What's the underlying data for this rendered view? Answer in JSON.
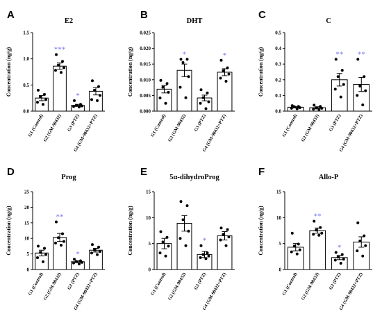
{
  "chart_data": [
    {
      "type": "bar",
      "letter": "A",
      "title": "E2",
      "ylabel": "Concentration (ng/g)",
      "ylim": [
        0,
        1.5
      ],
      "yticks": [
        "0.0",
        "0.5",
        "1.0",
        "1.5"
      ],
      "categories": [
        "G1 (Control)",
        "G2 (GM-90432)",
        "G3 (PTZ)",
        "G4 (GM-90432+PTZ)"
      ],
      "values": [
        0.25,
        0.86,
        0.11,
        0.38
      ],
      "errors": [
        0.05,
        0.06,
        0.02,
        0.07
      ],
      "points": [
        [
          0.4,
          0.32,
          0.27,
          0.22,
          0.17,
          0.13
        ],
        [
          1.08,
          0.95,
          0.88,
          0.83,
          0.78,
          0.74
        ],
        [
          0.2,
          0.13,
          0.11,
          0.1,
          0.09,
          0.08
        ],
        [
          0.58,
          0.47,
          0.4,
          0.3,
          0.22,
          0.2
        ]
      ],
      "significance": [
        "",
        "***",
        "*",
        ""
      ],
      "sig_color": "#6f6fef"
    },
    {
      "type": "bar",
      "letter": "B",
      "title": "DHT",
      "ylabel": "Concentration (ng/g)",
      "ylim": [
        0,
        0.025
      ],
      "yticks": [
        "0.000",
        "0.005",
        "0.010",
        "0.015",
        "0.020",
        "0.025"
      ],
      "categories": [
        "G1 (Control)",
        "G2 (GM-90432)",
        "G3 (PTZ)",
        "G4 (GM-90432+PTZ)"
      ],
      "values": [
        0.007,
        0.013,
        0.0042,
        0.0124
      ],
      "errors": [
        0.0012,
        0.002,
        0.0009,
        0.0011
      ],
      "points": [
        [
          0.0098,
          0.0088,
          0.0076,
          0.006,
          0.0042,
          0.0025
        ],
        [
          0.0165,
          0.0165,
          0.0155,
          0.011,
          0.0076,
          0.0043
        ],
        [
          0.0068,
          0.0058,
          0.0043,
          0.003,
          0.0025,
          0.0008
        ],
        [
          0.0162,
          0.0138,
          0.0129,
          0.0118,
          0.0105,
          0.0095
        ]
      ],
      "significance": [
        "",
        "*",
        "",
        "*"
      ],
      "sig_color": "#6f6fef"
    },
    {
      "type": "bar",
      "letter": "C",
      "title": "C",
      "ylabel": "Concentration (ng/g)",
      "ylim": [
        0,
        0.5
      ],
      "yticks": [
        "0.0",
        "0.1",
        "0.2",
        "0.3",
        "0.4",
        "0.5"
      ],
      "categories": [
        "G1 (Control)",
        "G2 (GM-90432)",
        "G3 (PTZ)",
        "G4 (GM-90432+PTZ)"
      ],
      "values": [
        0.025,
        0.022,
        0.2,
        0.17
      ],
      "errors": [
        0.005,
        0.006,
        0.04,
        0.045
      ],
      "points": [
        [
          0.035,
          0.03,
          0.028,
          0.022,
          0.018,
          0.015
        ],
        [
          0.038,
          0.03,
          0.02,
          0.018,
          0.012,
          0.01
        ],
        [
          0.33,
          0.26,
          0.22,
          0.17,
          0.14,
          0.09
        ],
        [
          0.33,
          0.22,
          0.16,
          0.13,
          0.1,
          0.04
        ]
      ],
      "significance": [
        "",
        "",
        "**",
        "**"
      ],
      "sig_color": "#6f6fef"
    },
    {
      "type": "bar",
      "letter": "D",
      "title": "Prog",
      "ylabel": "Concentration (ng/g)",
      "ylim": [
        0,
        25
      ],
      "yticks": [
        "0",
        "5",
        "10",
        "15",
        "20",
        "25"
      ],
      "categories": [
        "G1 (Control)",
        "G2 (GM-90432)",
        "G3 (PTZ)",
        "G4 (GM-90432+PTZ)"
      ],
      "values": [
        5.3,
        10.3,
        2.5,
        6.2
      ],
      "errors": [
        0.9,
        1.3,
        0.3,
        0.6
      ],
      "points": [
        [
          7.5,
          6.8,
          5.5,
          4.8,
          3.8,
          2.5
        ],
        [
          15.3,
          11.5,
          10.2,
          9,
          8.5,
          7.8
        ],
        [
          3.3,
          2.8,
          2.6,
          2.3,
          2.1,
          1.8
        ],
        [
          8,
          7.2,
          6.3,
          5.8,
          5.3,
          4.8
        ]
      ],
      "significance": [
        "",
        "**",
        "*",
        ""
      ],
      "sig_color": "#6f6fef"
    },
    {
      "type": "bar",
      "letter": "E",
      "title": "5α-dihydroProg",
      "ylabel": "Concentration  (ng/g)",
      "ylim": [
        0,
        15
      ],
      "yticks": [
        "0",
        "5",
        "10",
        "15"
      ],
      "categories": [
        "G1 (Control)",
        "G2 (GM-90432)",
        "G3 (PTZ)",
        "G4 (GM-90432+PTZ)"
      ],
      "values": [
        5.0,
        8.9,
        2.9,
        6.5
      ],
      "errors": [
        1.0,
        1.5,
        0.6,
        0.8
      ],
      "points": [
        [
          7.3,
          6.2,
          5.3,
          4.5,
          3.2,
          2.6
        ],
        [
          13.1,
          12.3,
          9.6,
          7.4,
          6.0,
          4.6
        ],
        [
          4.6,
          3.2,
          2.9,
          2.6,
          2.3,
          2.1
        ],
        [
          8.0,
          7.7,
          6.8,
          6.3,
          5.7,
          4.6
        ]
      ],
      "significance": [
        "",
        "",
        "*",
        ""
      ],
      "sig_color": "#6f6fef"
    },
    {
      "type": "bar",
      "letter": "F",
      "title": "Allo-P",
      "ylabel": "Concentration (ng/g)",
      "ylim": [
        0,
        15
      ],
      "yticks": [
        "0",
        "5",
        "10",
        "15"
      ],
      "categories": [
        "G1 (Control)",
        "G2 (GM-90432)",
        "G3 (PTZ)",
        "G4 (GM-90432+PTZ)"
      ],
      "values": [
        4.3,
        7.5,
        2.3,
        5.3
      ],
      "errors": [
        0.7,
        0.5,
        0.4,
        1.0
      ],
      "points": [
        [
          7.0,
          4.9,
          4.5,
          3.8,
          3.4,
          3.0
        ],
        [
          9.3,
          8.1,
          7.6,
          7.0,
          6.8,
          6.6
        ],
        [
          3.3,
          2.9,
          2.4,
          2.0,
          1.8,
          1.2
        ],
        [
          9.0,
          6.5,
          5.5,
          4.6,
          3.6,
          2.6
        ]
      ],
      "significance": [
        "",
        "**",
        "*",
        ""
      ],
      "sig_color": "#6f6fef"
    }
  ]
}
